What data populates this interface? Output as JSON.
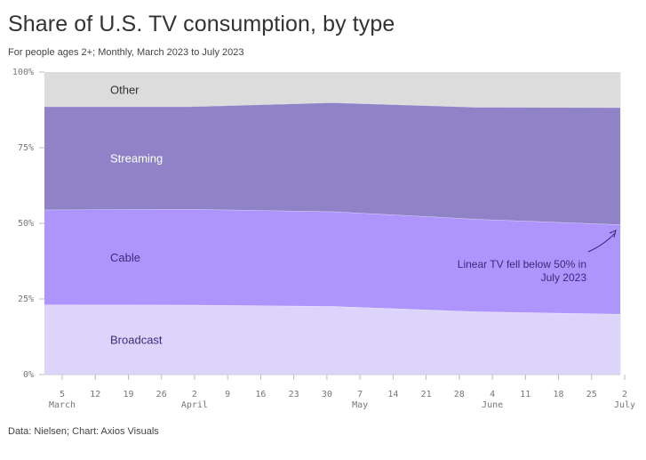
{
  "header": {
    "title": "Share of U.S. TV consumption, by type",
    "subtitle": "For people ages 2+; Monthly, March 2023 to July 2023"
  },
  "footer": {
    "source": "Data: Nielsen; Chart: Axios Visuals"
  },
  "chart_data": {
    "type": "area",
    "stacked": true,
    "x_ticks": [
      {
        "day": "5",
        "month": "March"
      },
      {
        "day": "12",
        "month": ""
      },
      {
        "day": "19",
        "month": ""
      },
      {
        "day": "26",
        "month": ""
      },
      {
        "day": "2",
        "month": "April"
      },
      {
        "day": "9",
        "month": ""
      },
      {
        "day": "16",
        "month": ""
      },
      {
        "day": "23",
        "month": ""
      },
      {
        "day": "30",
        "month": ""
      },
      {
        "day": "7",
        "month": "May"
      },
      {
        "day": "14",
        "month": ""
      },
      {
        "day": "21",
        "month": ""
      },
      {
        "day": "28",
        "month": ""
      },
      {
        "day": "4",
        "month": "June"
      },
      {
        "day": "11",
        "month": ""
      },
      {
        "day": "18",
        "month": ""
      },
      {
        "day": "25",
        "month": ""
      },
      {
        "day": "2",
        "month": "July"
      }
    ],
    "x": [
      "2023-03-01",
      "2023-04-01",
      "2023-05-01",
      "2023-06-01",
      "2023-07-01"
    ],
    "y_ticks": [
      "0%",
      "25%",
      "50%",
      "75%",
      "100%"
    ],
    "ylim": [
      0,
      100
    ],
    "series": [
      {
        "name": "Broadcast",
        "values": [
          23.1,
          23.0,
          22.6,
          20.8,
          20.0
        ],
        "color": "#ddd4fb",
        "label_color": "#3b2d7e"
      },
      {
        "name": "Cable",
        "values": [
          31.4,
          31.7,
          31.3,
          30.6,
          29.6
        ],
        "color": "#ad95fd",
        "label_color": "#3b2d7e"
      },
      {
        "name": "Streaming",
        "values": [
          34.1,
          33.9,
          36.0,
          37.0,
          38.7
        ],
        "color": "#8f82c7",
        "label_color": "#ffffff"
      },
      {
        "name": "Other",
        "values": [
          11.4,
          11.4,
          10.1,
          11.6,
          11.7
        ],
        "color": "#dcdcdc",
        "label_color": "#333333"
      }
    ],
    "annotation": {
      "lines": [
        "Linear TV fell below 50% in",
        "July 2023"
      ]
    }
  }
}
